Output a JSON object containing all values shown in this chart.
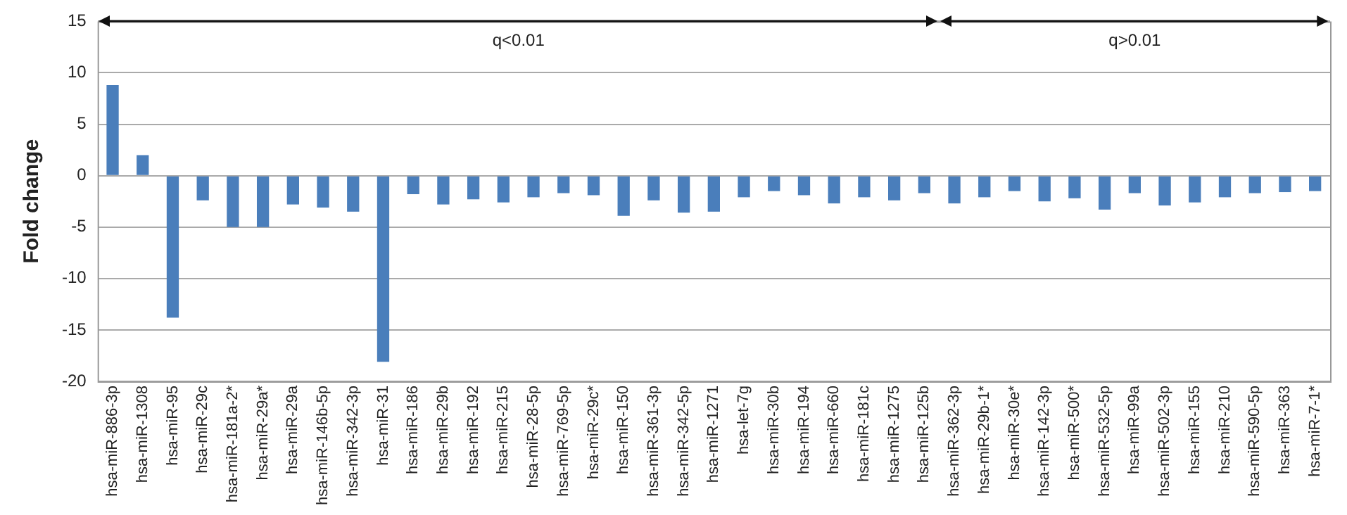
{
  "chart_data": {
    "type": "bar",
    "ylabel": "Fold change",
    "annotations": [
      "q<0.01",
      "q>0.01"
    ],
    "categories": [
      "hsa-miR-886-3p",
      "hsa-miR-1308",
      "hsa-miR-95",
      "hsa-miR-29c",
      "hsa-miR-181a-2*",
      "hsa-miR-29a*",
      "hsa-miR-29a",
      "hsa-miR-146b-5p",
      "hsa-miR-342-3p",
      "hsa-miR-31",
      "hsa-miR-186",
      "hsa-miR-29b",
      "hsa-miR-192",
      "hsa-miR-215",
      "hsa-miR-28-5p",
      "hsa-miR-769-5p",
      "hsa-miR-29c*",
      "hsa-miR-150",
      "hsa-miR-361-3p",
      "hsa-miR-342-5p",
      "hsa-miR-1271",
      "hsa-let-7g",
      "hsa-miR-30b",
      "hsa-miR-194",
      "hsa-miR-660",
      "hsa-miR-181c",
      "hsa-miR-1275",
      "hsa-miR-125b",
      "hsa-miR-362-3p",
      "hsa-miR-29b-1*",
      "hsa-miR-30e*",
      "hsa-miR-142-3p",
      "hsa-miR-500*",
      "hsa-miR-532-5p",
      "hsa-miR-99a",
      "hsa-miR-502-3p",
      "hsa-miR-155",
      "hsa-miR-210",
      "hsa-miR-590-5p",
      "hsa-miR-363",
      "hsa-miR-7-1*"
    ],
    "values": [
      8.8,
      2.0,
      -13.8,
      -2.4,
      -5.0,
      -5.0,
      -2.8,
      -3.1,
      -3.5,
      -18.1,
      -1.8,
      -2.8,
      -2.3,
      -2.6,
      -2.1,
      -1.7,
      -1.9,
      -3.9,
      -2.4,
      -3.6,
      -3.5,
      -2.1,
      -1.5,
      -1.9,
      -2.7,
      -2.1,
      -2.4,
      -1.7,
      -2.7,
      -2.1,
      -1.5,
      -2.5,
      -2.2,
      -3.3,
      -1.7,
      -2.9,
      -2.6,
      -2.1,
      -1.7,
      -1.6,
      -1.5
    ],
    "color": "#4a7ebb",
    "ylim": [
      -20,
      15
    ],
    "yticks": [
      -20,
      -15,
      -10,
      -5,
      0,
      5,
      10,
      15
    ],
    "grid": "y",
    "legend": false
  }
}
